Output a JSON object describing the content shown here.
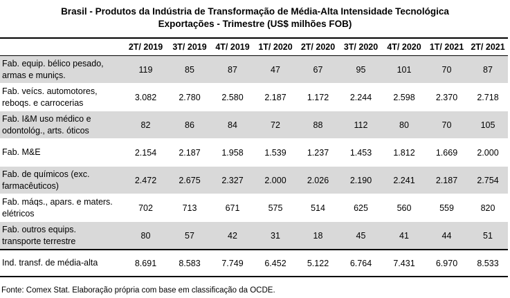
{
  "title_line1": "Brasil - Produtos da Indústria de Transformação de Média-Alta Intensidade Tecnológica",
  "title_line2": "Exportações - Trimestre (US$ milhões FOB)",
  "source": "Fonte: Comex Stat. Elaboração própria com base em classificação da OCDE.",
  "chart_data": {
    "type": "table",
    "columns": [
      "2T/ 2019",
      "3T/ 2019",
      "4T/ 2019",
      "1T/ 2020",
      "2T/ 2020",
      "3T/ 2020",
      "4T/ 2020",
      "1T/ 2021",
      "2T/ 2021"
    ],
    "rows": [
      {
        "label_line1": "Fab. equip. bélico pesado,",
        "label_line2": "armas e muniçs.",
        "values": [
          "119",
          "85",
          "87",
          "47",
          "67",
          "95",
          "101",
          "70",
          "87"
        ]
      },
      {
        "label_line1": "Fab. veícs. automotores,",
        "label_line2": "reboqs. e carrocerias",
        "values": [
          "3.082",
          "2.780",
          "2.580",
          "2.187",
          "1.172",
          "2.244",
          "2.598",
          "2.370",
          "2.718"
        ]
      },
      {
        "label_line1": "Fab. I&M uso médico e",
        "label_line2": "odontológ., arts. óticos",
        "values": [
          "82",
          "86",
          "84",
          "72",
          "88",
          "112",
          "80",
          "70",
          "105"
        ]
      },
      {
        "label_line1": "Fab. M&E",
        "label_line2": "",
        "values": [
          "2.154",
          "2.187",
          "1.958",
          "1.539",
          "1.237",
          "1.453",
          "1.812",
          "1.669",
          "2.000"
        ]
      },
      {
        "label_line1": "Fab. de químicos (exc.",
        "label_line2": "farmacêuticos)",
        "values": [
          "2.472",
          "2.675",
          "2.327",
          "2.000",
          "2.026",
          "2.190",
          "2.241",
          "2.187",
          "2.754"
        ]
      },
      {
        "label_line1": "Fab. máqs., apars. e maters.",
        "label_line2": "elétricos",
        "values": [
          "702",
          "713",
          "671",
          "575",
          "514",
          "625",
          "560",
          "559",
          "820"
        ]
      },
      {
        "label_line1": "Fab. outros equips.",
        "label_line2": "transporte terrestre",
        "values": [
          "80",
          "57",
          "42",
          "31",
          "18",
          "45",
          "41",
          "44",
          "51"
        ]
      }
    ],
    "total": {
      "label": "Ind. transf. de média-alta",
      "values": [
        "8.691",
        "8.583",
        "7.749",
        "6.452",
        "5.122",
        "6.764",
        "7.431",
        "6.970",
        "8.533"
      ]
    },
    "shading_color": "#d9d9d9"
  }
}
